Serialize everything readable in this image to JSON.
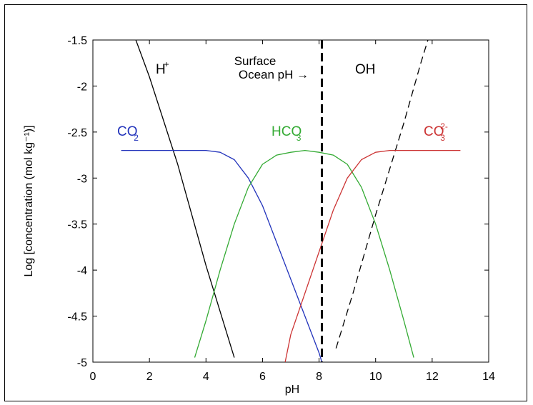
{
  "chart_data": {
    "type": "line",
    "xlabel": "pH",
    "ylabel": "Log [concentration (mol kg⁻¹)]",
    "xlim": [
      0,
      14
    ],
    "ylim": [
      -5,
      -1.5
    ],
    "xticks": [
      0,
      2,
      4,
      6,
      8,
      10,
      12,
      14
    ],
    "yticks": [
      -1.5,
      -2,
      -2.5,
      -3,
      -3.5,
      -4,
      -4.5,
      -5
    ],
    "xtick_labels": [
      "0",
      "2",
      "4",
      "6",
      "8",
      "10",
      "12",
      "14"
    ],
    "ytick_labels": [
      "-1.5",
      "-2",
      "-2.5",
      "-3",
      "-3.5",
      "-4",
      "-4.5",
      "-5"
    ],
    "grid": false,
    "series": [
      {
        "key": "h",
        "color": "#000000",
        "dash": "solid",
        "points": [
          [
            1.4,
            -1.4
          ],
          [
            2,
            -1.9
          ],
          [
            3,
            -2.85
          ],
          [
            4,
            -3.95
          ],
          [
            5,
            -4.95
          ]
        ]
      },
      {
        "key": "oh",
        "color": "#000000",
        "dash": "dashed",
        "points": [
          [
            8.6,
            -4.85
          ],
          [
            9.2,
            -4.25
          ],
          [
            10,
            -3.4
          ],
          [
            11,
            -2.4
          ],
          [
            11.6,
            -1.75
          ],
          [
            11.85,
            -1.5
          ]
        ]
      },
      {
        "key": "co2",
        "color": "#2233bb",
        "dash": "solid",
        "points": [
          [
            1,
            -2.7
          ],
          [
            2,
            -2.7
          ],
          [
            3,
            -2.7
          ],
          [
            4,
            -2.7
          ],
          [
            4.5,
            -2.72
          ],
          [
            5,
            -2.8
          ],
          [
            5.5,
            -3.0
          ],
          [
            6,
            -3.3
          ],
          [
            6.5,
            -3.7
          ],
          [
            7,
            -4.1
          ],
          [
            7.5,
            -4.5
          ],
          [
            8,
            -4.9
          ],
          [
            8.1,
            -5.0
          ]
        ]
      },
      {
        "key": "hco3",
        "color": "#33aa33",
        "dash": "solid",
        "points": [
          [
            3.6,
            -4.95
          ],
          [
            4,
            -4.55
          ],
          [
            4.5,
            -4.0
          ],
          [
            5,
            -3.5
          ],
          [
            5.5,
            -3.1
          ],
          [
            6,
            -2.85
          ],
          [
            6.5,
            -2.75
          ],
          [
            7,
            -2.72
          ],
          [
            7.5,
            -2.7
          ],
          [
            8,
            -2.72
          ],
          [
            8.5,
            -2.75
          ],
          [
            9,
            -2.85
          ],
          [
            9.5,
            -3.1
          ],
          [
            10,
            -3.5
          ],
          [
            10.5,
            -4.0
          ],
          [
            11,
            -4.55
          ],
          [
            11.35,
            -4.95
          ]
        ]
      },
      {
        "key": "co3",
        "color": "#cc3333",
        "dash": "solid",
        "points": [
          [
            6.8,
            -5.0
          ],
          [
            7,
            -4.7
          ],
          [
            7.5,
            -4.25
          ],
          [
            8,
            -3.8
          ],
          [
            8.5,
            -3.35
          ],
          [
            9,
            -3.0
          ],
          [
            9.5,
            -2.8
          ],
          [
            10,
            -2.72
          ],
          [
            10.5,
            -2.7
          ],
          [
            11,
            -2.7
          ],
          [
            12,
            -2.7
          ],
          [
            13,
            -2.7
          ]
        ]
      }
    ],
    "vertical_line": {
      "x": 8.1,
      "color": "#000000",
      "dash": "dashed"
    },
    "labels": {
      "h": {
        "base": "H",
        "sup": "+",
        "color": "#000000"
      },
      "oh": {
        "base": "OH",
        "sup": "-",
        "color": "#000000"
      },
      "co2": {
        "base": "CO",
        "sub": "2",
        "color": "#2233bb"
      },
      "hco3": {
        "base": "HCO",
        "sup": "-",
        "sub": "3",
        "color": "#33aa33"
      },
      "co3": {
        "base": "CO",
        "sup": "2-",
        "sub": "3",
        "color": "#cc3333"
      },
      "surface_line1": "Surface",
      "surface_line2": "Ocean pH →"
    }
  }
}
